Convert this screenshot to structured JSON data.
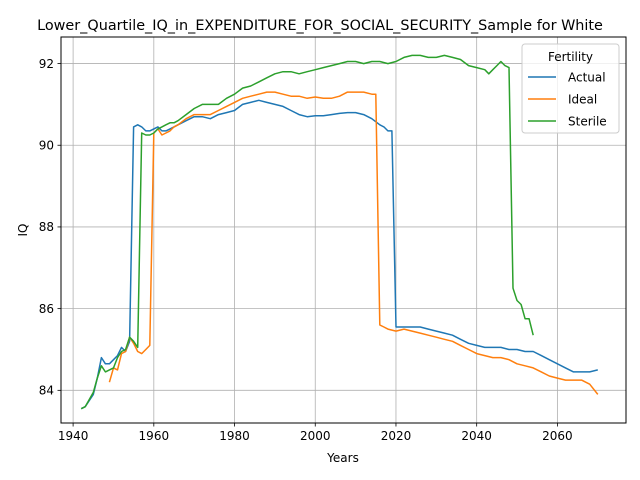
{
  "chart_data": {
    "type": "line",
    "title": "Lower_Quartile_IQ_in_EXPENDITURE_FOR_SOCIAL_SECURITY_Sample for White",
    "xlabel": "Years",
    "ylabel": "IQ",
    "xlim": [
      1937,
      2077
    ],
    "ylim": [
      83.2,
      92.65
    ],
    "xticks": [
      1940,
      1960,
      1980,
      2000,
      2020,
      2040,
      2060
    ],
    "yticks": [
      84,
      86,
      88,
      90,
      92
    ],
    "grid": true,
    "legend": {
      "title": "Fertility",
      "placement": "upper right"
    },
    "series": [
      {
        "name": "Actual",
        "color": "#1f77b4",
        "x": [
          1942,
          1943,
          1945,
          1946,
          1947,
          1948,
          1949,
          1950,
          1951,
          1952,
          1953,
          1954,
          1955,
          1956,
          1957,
          1958,
          1959,
          1960,
          1961,
          1962,
          1963,
          1964,
          1965,
          1966,
          1968,
          1970,
          1972,
          1974,
          1976,
          1978,
          1980,
          1982,
          1984,
          1986,
          1988,
          1990,
          1992,
          1994,
          1996,
          1998,
          2000,
          2002,
          2004,
          2006,
          2008,
          2010,
          2012,
          2014,
          2016,
          2017,
          2018,
          2019,
          2020,
          2021,
          2022,
          2024,
          2026,
          2028,
          2030,
          2032,
          2034,
          2036,
          2038,
          2040,
          2042,
          2044,
          2046,
          2048,
          2050,
          2052,
          2054,
          2056,
          2058,
          2060,
          2062,
          2064,
          2066,
          2068,
          2070
        ],
        "values": [
          83.55,
          83.6,
          83.9,
          84.3,
          84.8,
          84.65,
          84.65,
          84.75,
          84.85,
          85.05,
          84.95,
          85.2,
          90.45,
          90.5,
          90.45,
          90.35,
          90.35,
          90.4,
          90.45,
          90.35,
          90.35,
          90.4,
          90.45,
          90.5,
          90.6,
          90.7,
          90.7,
          90.65,
          90.75,
          90.8,
          90.85,
          91.0,
          91.05,
          91.1,
          91.05,
          91.0,
          90.95,
          90.85,
          90.75,
          90.7,
          90.72,
          90.72,
          90.75,
          90.78,
          90.8,
          90.8,
          90.75,
          90.65,
          90.5,
          90.45,
          90.35,
          90.35,
          85.55,
          85.55,
          85.55,
          85.55,
          85.55,
          85.5,
          85.45,
          85.4,
          85.35,
          85.25,
          85.15,
          85.1,
          85.05,
          85.05,
          85.05,
          85.0,
          85.0,
          84.95,
          84.95,
          84.85,
          84.75,
          84.65,
          84.55,
          84.45,
          84.45,
          84.45,
          84.5
        ]
      },
      {
        "name": "Ideal",
        "color": "#ff7f0e",
        "x": [
          1949,
          1950,
          1951,
          1952,
          1953,
          1954,
          1955,
          1956,
          1957,
          1958,
          1959,
          1960,
          1961,
          1962,
          1963,
          1964,
          1965,
          1966,
          1968,
          1970,
          1972,
          1974,
          1976,
          1978,
          1980,
          1982,
          1984,
          1986,
          1988,
          1990,
          1992,
          1994,
          1996,
          1998,
          2000,
          2002,
          2004,
          2006,
          2008,
          2010,
          2012,
          2014,
          2015,
          2016,
          2017,
          2018,
          2020,
          2022,
          2024,
          2026,
          2028,
          2030,
          2032,
          2034,
          2036,
          2038,
          2040,
          2042,
          2044,
          2046,
          2048,
          2050,
          2052,
          2054,
          2056,
          2058,
          2060,
          2062,
          2064,
          2066,
          2068,
          2070
        ],
        "values": [
          84.2,
          84.55,
          84.5,
          84.9,
          84.95,
          85.3,
          85.15,
          84.95,
          84.9,
          85.0,
          85.1,
          90.3,
          90.4,
          90.25,
          90.3,
          90.35,
          90.45,
          90.5,
          90.65,
          90.75,
          90.75,
          90.75,
          90.85,
          90.95,
          91.05,
          91.15,
          91.2,
          91.25,
          91.3,
          91.3,
          91.25,
          91.2,
          91.2,
          91.15,
          91.18,
          91.15,
          91.15,
          91.2,
          91.3,
          91.3,
          91.3,
          91.25,
          91.25,
          85.6,
          85.55,
          85.5,
          85.45,
          85.5,
          85.45,
          85.4,
          85.35,
          85.3,
          85.25,
          85.2,
          85.1,
          85.0,
          84.9,
          84.85,
          84.8,
          84.8,
          84.75,
          84.65,
          84.6,
          84.55,
          84.45,
          84.35,
          84.3,
          84.25,
          84.25,
          84.25,
          84.15,
          83.9
        ]
      },
      {
        "name": "Sterile",
        "color": "#2ca02c",
        "x": [
          1942,
          1943,
          1945,
          1946,
          1947,
          1948,
          1949,
          1950,
          1951,
          1952,
          1953,
          1954,
          1955,
          1956,
          1957,
          1958,
          1959,
          1960,
          1961,
          1962,
          1963,
          1964,
          1965,
          1966,
          1968,
          1970,
          1972,
          1974,
          1976,
          1978,
          1980,
          1982,
          1984,
          1986,
          1988,
          1990,
          1992,
          1994,
          1996,
          1998,
          2000,
          2002,
          2004,
          2006,
          2008,
          2010,
          2012,
          2014,
          2016,
          2018,
          2020,
          2022,
          2024,
          2026,
          2028,
          2030,
          2032,
          2034,
          2036,
          2038,
          2040,
          2042,
          2043,
          2044,
          2045,
          2046,
          2047,
          2048,
          2049,
          2050,
          2051,
          2052,
          2053,
          2054
        ],
        "values": [
          83.55,
          83.6,
          83.95,
          84.3,
          84.6,
          84.45,
          84.5,
          84.55,
          84.8,
          84.95,
          85.0,
          85.3,
          85.2,
          85.05,
          90.3,
          90.25,
          90.25,
          90.3,
          90.4,
          90.45,
          90.5,
          90.55,
          90.55,
          90.6,
          90.75,
          90.9,
          91.0,
          91.0,
          91.0,
          91.15,
          91.25,
          91.4,
          91.45,
          91.55,
          91.65,
          91.75,
          91.8,
          91.8,
          91.75,
          91.8,
          91.85,
          91.9,
          91.95,
          92.0,
          92.05,
          92.05,
          92.0,
          92.05,
          92.05,
          92.0,
          92.05,
          92.15,
          92.2,
          92.2,
          92.15,
          92.15,
          92.2,
          92.15,
          92.1,
          91.95,
          91.9,
          91.85,
          91.75,
          91.85,
          91.95,
          92.05,
          91.95,
          91.9,
          86.5,
          86.2,
          86.1,
          85.75,
          85.75,
          85.35
        ]
      }
    ]
  }
}
